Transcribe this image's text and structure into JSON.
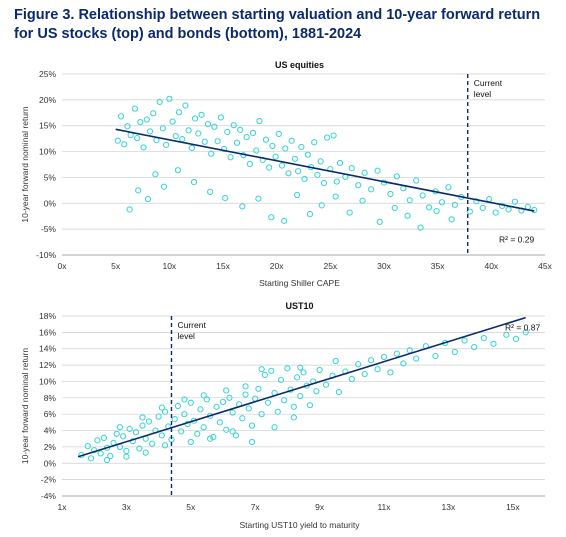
{
  "figure_title": "Figure 3. Relationship between starting valuation and 10-year forward return for US stocks (top) and bonds (bottom), 1881-2024",
  "colors": {
    "point": "#33d4d4",
    "trend": "#0b2a6b",
    "marker": "#0b2a6b",
    "grid": "#cfcfcf",
    "title": "#0b2a6b"
  },
  "chart_data": [
    {
      "type": "scatter",
      "title": "US equities",
      "xlabel": "Starting Shiller CAPE",
      "ylabel": "10-year forward nominal return",
      "xlim": [
        0,
        45
      ],
      "ylim": [
        -10,
        25
      ],
      "x_ticks": [
        0,
        5,
        10,
        15,
        20,
        25,
        30,
        35,
        40,
        45
      ],
      "x_tick_labels": [
        "0x",
        "5x",
        "10x",
        "15x",
        "20x",
        "25x",
        "30x",
        "35x",
        "40x",
        "45x"
      ],
      "y_ticks": [
        -10,
        -5,
        0,
        5,
        10,
        15,
        20,
        25
      ],
      "y_tick_labels": [
        "-10%",
        "-5%",
        "0%",
        "5%",
        "10%",
        "15%",
        "20%",
        "25%"
      ],
      "grid": "horizontal",
      "trendline": {
        "x": [
          5,
          44
        ],
        "y": [
          14.3,
          -1.5
        ]
      },
      "current_marker": {
        "x": 37.8,
        "label_line1": "Current",
        "label_line2": "level"
      },
      "r2_label": "R² = 0.29",
      "points": [
        [
          5.2,
          12.1
        ],
        [
          5.5,
          16.8
        ],
        [
          5.8,
          11.4
        ],
        [
          6.1,
          14.9
        ],
        [
          6.4,
          13.2
        ],
        [
          6.8,
          18.3
        ],
        [
          7.0,
          12.6
        ],
        [
          7.3,
          15.7
        ],
        [
          7.6,
          10.8
        ],
        [
          7.9,
          16.2
        ],
        [
          8.2,
          13.9
        ],
        [
          8.5,
          17.4
        ],
        [
          8.8,
          12.2
        ],
        [
          9.1,
          19.6
        ],
        [
          9.4,
          14.5
        ],
        [
          9.7,
          11.3
        ],
        [
          10.0,
          20.2
        ],
        [
          10.3,
          15.8
        ],
        [
          10.6,
          13.0
        ],
        [
          10.9,
          17.6
        ],
        [
          11.2,
          12.4
        ],
        [
          11.5,
          18.9
        ],
        [
          11.8,
          14.1
        ],
        [
          12.1,
          10.7
        ],
        [
          12.4,
          16.4
        ],
        [
          12.7,
          13.5
        ],
        [
          13.0,
          17.1
        ],
        [
          13.3,
          11.9
        ],
        [
          13.6,
          15.3
        ],
        [
          13.9,
          9.6
        ],
        [
          14.2,
          14.8
        ],
        [
          14.5,
          12.0
        ],
        [
          14.8,
          16.6
        ],
        [
          15.1,
          10.5
        ],
        [
          15.4,
          13.8
        ],
        [
          15.7,
          8.9
        ],
        [
          16.0,
          15.1
        ],
        [
          16.3,
          11.7
        ],
        [
          16.6,
          14.2
        ],
        [
          16.9,
          9.3
        ],
        [
          17.2,
          12.8
        ],
        [
          17.5,
          7.6
        ],
        [
          17.8,
          13.6
        ],
        [
          18.1,
          10.2
        ],
        [
          18.4,
          15.9
        ],
        [
          18.7,
          8.4
        ],
        [
          19.0,
          12.3
        ],
        [
          19.3,
          6.9
        ],
        [
          19.6,
          11.1
        ],
        [
          19.9,
          9.0
        ],
        [
          20.2,
          13.4
        ],
        [
          20.5,
          7.3
        ],
        [
          20.8,
          10.6
        ],
        [
          21.1,
          5.8
        ],
        [
          21.4,
          12.1
        ],
        [
          21.7,
          8.6
        ],
        [
          22.0,
          6.2
        ],
        [
          22.3,
          10.9
        ],
        [
          22.6,
          4.7
        ],
        [
          22.9,
          9.4
        ],
        [
          23.2,
          7.0
        ],
        [
          23.5,
          11.8
        ],
        [
          23.8,
          5.5
        ],
        [
          24.1,
          8.1
        ],
        [
          24.4,
          3.9
        ],
        [
          24.7,
          12.7
        ],
        [
          25.0,
          6.6
        ],
        [
          25.3,
          13.1
        ],
        [
          25.6,
          4.2
        ],
        [
          25.9,
          7.8
        ],
        [
          26.4,
          5.1
        ],
        [
          27.0,
          6.8
        ],
        [
          27.6,
          3.5
        ],
        [
          28.2,
          5.9
        ],
        [
          28.8,
          2.7
        ],
        [
          29.4,
          6.3
        ],
        [
          30.0,
          4.0
        ],
        [
          30.6,
          1.8
        ],
        [
          31.2,
          5.2
        ],
        [
          31.8,
          2.9
        ],
        [
          32.4,
          0.6
        ],
        [
          33.0,
          4.4
        ],
        [
          33.6,
          1.5
        ],
        [
          34.2,
          -0.8
        ],
        [
          34.8,
          2.3
        ],
        [
          35.4,
          0.2
        ],
        [
          36.0,
          3.1
        ],
        [
          36.6,
          -0.3
        ],
        [
          37.2,
          1.2
        ],
        [
          38.0,
          -1.6
        ],
        [
          38.6,
          0.4
        ],
        [
          39.2,
          -0.9
        ],
        [
          39.8,
          0.8
        ],
        [
          40.4,
          -1.8
        ],
        [
          41.0,
          -0.5
        ],
        [
          41.6,
          -1.2
        ],
        [
          42.2,
          0.3
        ],
        [
          42.8,
          -1.4
        ],
        [
          43.4,
          -0.7
        ],
        [
          44.0,
          -1.3
        ],
        [
          6.3,
          -1.2
        ],
        [
          7.1,
          2.5
        ],
        [
          8.0,
          0.8
        ],
        [
          8.7,
          5.6
        ],
        [
          9.5,
          3.2
        ],
        [
          10.8,
          6.4
        ],
        [
          12.3,
          4.1
        ],
        [
          13.8,
          2.2
        ],
        [
          15.2,
          1.0
        ],
        [
          16.8,
          -0.6
        ],
        [
          18.3,
          0.9
        ],
        [
          19.5,
          -2.7
        ],
        [
          20.7,
          -3.4
        ],
        [
          21.9,
          1.6
        ],
        [
          23.1,
          -2.1
        ],
        [
          24.2,
          -0.4
        ],
        [
          25.5,
          1.3
        ],
        [
          26.8,
          -1.8
        ],
        [
          28.0,
          0.5
        ],
        [
          29.6,
          -3.6
        ],
        [
          31.0,
          -0.9
        ],
        [
          32.2,
          -2.4
        ],
        [
          33.4,
          -4.7
        ],
        [
          34.9,
          -1.5
        ],
        [
          36.3,
          -3.1
        ]
      ]
    },
    {
      "type": "scatter",
      "title": "UST10",
      "xlabel": "Starting UST10 yield to maturity",
      "ylabel": "10-year forward nominal return",
      "xlim": [
        1,
        16
      ],
      "ylim": [
        -4,
        18
      ],
      "x_ticks": [
        1,
        3,
        5,
        7,
        9,
        11,
        13,
        15
      ],
      "x_tick_labels": [
        "1x",
        "3x",
        "5x",
        "7x",
        "9x",
        "11x",
        "13x",
        "15x"
      ],
      "y_ticks": [
        -4,
        -2,
        0,
        2,
        4,
        6,
        8,
        10,
        12,
        14,
        16,
        18
      ],
      "y_tick_labels": [
        "-4%",
        "-2%",
        "0%",
        "2%",
        "4%",
        "6%",
        "8%",
        "10%",
        "12%",
        "14%",
        "16%",
        "18%"
      ],
      "grid": "horizontal",
      "trendline": {
        "x": [
          1.5,
          15.4
        ],
        "y": [
          0.8,
          17.8
        ]
      },
      "current_marker": {
        "x": 4.4,
        "label_line1": "Current",
        "label_line2": "level"
      },
      "r2_label": "R² = 0.87",
      "points": [
        [
          1.6,
          1.0
        ],
        [
          1.8,
          2.1
        ],
        [
          1.9,
          0.6
        ],
        [
          2.0,
          1.6
        ],
        [
          2.1,
          2.8
        ],
        [
          2.2,
          1.2
        ],
        [
          2.3,
          3.1
        ],
        [
          2.4,
          1.9
        ],
        [
          2.5,
          0.9
        ],
        [
          2.6,
          2.5
        ],
        [
          2.7,
          3.6
        ],
        [
          2.8,
          2.0
        ],
        [
          2.9,
          3.3
        ],
        [
          3.0,
          1.5
        ],
        [
          3.1,
          4.2
        ],
        [
          3.2,
          2.7
        ],
        [
          3.3,
          3.8
        ],
        [
          3.4,
          1.8
        ],
        [
          3.5,
          4.6
        ],
        [
          3.6,
          3.0
        ],
        [
          3.7,
          5.1
        ],
        [
          3.8,
          2.4
        ],
        [
          3.9,
          4.0
        ],
        [
          4.0,
          5.7
        ],
        [
          4.1,
          3.4
        ],
        [
          4.2,
          6.3
        ],
        [
          4.3,
          4.5
        ],
        [
          4.4,
          2.9
        ],
        [
          4.5,
          5.4
        ],
        [
          4.6,
          7.0
        ],
        [
          4.7,
          3.9
        ],
        [
          4.8,
          6.0
        ],
        [
          4.9,
          4.8
        ],
        [
          5.0,
          7.4
        ],
        [
          5.1,
          5.2
        ],
        [
          5.2,
          3.6
        ],
        [
          5.3,
          6.6
        ],
        [
          5.4,
          4.4
        ],
        [
          5.5,
          7.8
        ],
        [
          5.6,
          5.8
        ],
        [
          5.7,
          3.2
        ],
        [
          5.8,
          6.9
        ],
        [
          5.9,
          5.0
        ],
        [
          6.0,
          7.5
        ],
        [
          6.1,
          4.1
        ],
        [
          6.2,
          8.0
        ],
        [
          6.3,
          6.2
        ],
        [
          6.4,
          3.4
        ],
        [
          6.5,
          7.2
        ],
        [
          6.6,
          5.5
        ],
        [
          6.7,
          8.4
        ],
        [
          6.8,
          6.7
        ],
        [
          6.9,
          4.6
        ],
        [
          7.0,
          7.9
        ],
        [
          7.1,
          9.1
        ],
        [
          7.2,
          6.0
        ],
        [
          7.3,
          10.8
        ],
        [
          7.4,
          7.4
        ],
        [
          7.5,
          11.3
        ],
        [
          7.6,
          8.6
        ],
        [
          7.7,
          6.3
        ],
        [
          7.8,
          10.2
        ],
        [
          7.9,
          7.7
        ],
        [
          8.0,
          11.6
        ],
        [
          8.1,
          9.0
        ],
        [
          8.2,
          6.9
        ],
        [
          8.3,
          10.5
        ],
        [
          8.4,
          8.2
        ],
        [
          8.5,
          11.1
        ],
        [
          8.6,
          9.5
        ],
        [
          8.7,
          7.1
        ],
        [
          8.8,
          10.0
        ],
        [
          8.9,
          8.8
        ],
        [
          9.0,
          11.4
        ],
        [
          9.2,
          9.6
        ],
        [
          9.4,
          10.7
        ],
        [
          9.6,
          8.7
        ],
        [
          9.8,
          11.2
        ],
        [
          10.0,
          10.3
        ],
        [
          10.2,
          12.1
        ],
        [
          10.4,
          10.9
        ],
        [
          10.6,
          12.6
        ],
        [
          10.8,
          11.5
        ],
        [
          11.0,
          13.0
        ],
        [
          11.2,
          11.1
        ],
        [
          11.4,
          13.4
        ],
        [
          11.6,
          12.2
        ],
        [
          11.8,
          13.8
        ],
        [
          12.0,
          12.8
        ],
        [
          12.3,
          14.3
        ],
        [
          12.6,
          13.1
        ],
        [
          12.9,
          14.7
        ],
        [
          13.2,
          13.6
        ],
        [
          13.5,
          15.0
        ],
        [
          13.8,
          14.2
        ],
        [
          14.1,
          15.3
        ],
        [
          14.4,
          14.6
        ],
        [
          14.8,
          15.7
        ],
        [
          15.1,
          15.2
        ],
        [
          15.4,
          16.0
        ],
        [
          2.4,
          0.4
        ],
        [
          3.0,
          0.8
        ],
        [
          3.6,
          1.3
        ],
        [
          4.2,
          2.2
        ],
        [
          5.0,
          2.6
        ],
        [
          5.6,
          3.0
        ],
        [
          6.3,
          3.9
        ],
        [
          6.9,
          2.6
        ],
        [
          7.6,
          4.4
        ],
        [
          8.2,
          5.6
        ],
        [
          2.8,
          4.4
        ],
        [
          3.5,
          5.6
        ],
        [
          4.1,
          6.8
        ],
        [
          4.8,
          7.8
        ],
        [
          5.4,
          8.3
        ],
        [
          6.1,
          8.9
        ],
        [
          6.7,
          9.4
        ],
        [
          7.2,
          11.5
        ],
        [
          8.4,
          11.7
        ],
        [
          9.5,
          12.5
        ]
      ]
    }
  ]
}
